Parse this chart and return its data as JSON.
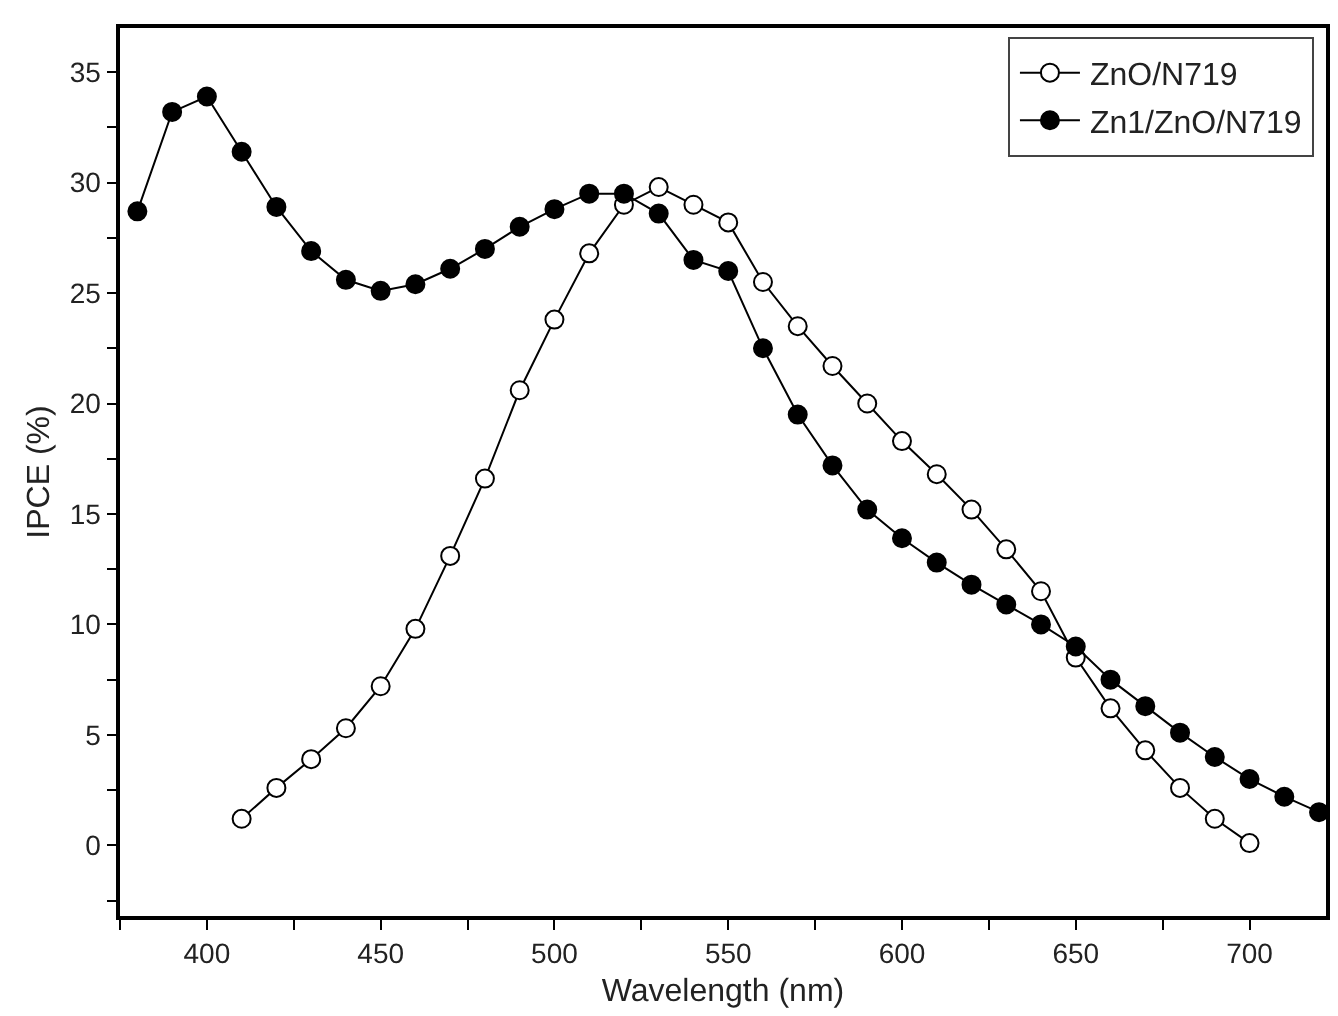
{
  "chart_data": {
    "type": "line",
    "xlabel": "Wavelength (nm)",
    "ylabel": "IPCE (%)",
    "xlim": [
      375,
      722
    ],
    "ylim": [
      -3.2,
      37
    ],
    "xticks": [
      {
        "value": 375,
        "label": null
      },
      400,
      {
        "value": 425,
        "label": null
      },
      450,
      {
        "value": 475,
        "label": null
      },
      500,
      {
        "value": 525,
        "label": null
      },
      550,
      {
        "value": 575,
        "label": null
      },
      600,
      {
        "value": 625,
        "label": null
      },
      650,
      {
        "value": 675,
        "label": null
      },
      700
    ],
    "yticks": [
      {
        "value": -2.5,
        "label": null
      },
      0,
      {
        "value": 2.5,
        "label": null
      },
      5,
      {
        "value": 7.5,
        "label": null
      },
      10,
      {
        "value": 12.5,
        "label": null
      },
      15,
      {
        "value": 17.5,
        "label": null
      },
      20,
      {
        "value": 22.5,
        "label": null
      },
      25,
      {
        "value": 27.5,
        "label": null
      },
      30,
      {
        "value": 32.5,
        "label": null
      },
      35
    ],
    "legend": "top right",
    "marker": "circle",
    "line_style": "solid",
    "series": [
      {
        "name": "ZnO/N719",
        "color": "#000000",
        "x": [
          410,
          420,
          430,
          440,
          450,
          460,
          470,
          480,
          490,
          500,
          510,
          520,
          530,
          540,
          550,
          560,
          570,
          580,
          590,
          600,
          610,
          620,
          630,
          640,
          650,
          660,
          670,
          680,
          690,
          700
        ],
        "values": [
          1.2,
          2.6,
          3.9,
          5.3,
          7.2,
          9.8,
          13.1,
          16.6,
          20.6,
          23.8,
          26.8,
          29.0,
          29.8,
          29.0,
          28.2,
          25.5,
          23.5,
          21.7,
          20.0,
          18.3,
          16.8,
          15.2,
          13.4,
          11.5,
          8.5,
          6.2,
          4.3,
          2.6,
          1.2,
          0.1
        ]
      },
      {
        "name": "Zn1/ZnO/N719",
        "color": "#000000",
        "x": [
          380,
          390,
          400,
          410,
          420,
          430,
          440,
          450,
          460,
          470,
          480,
          490,
          500,
          510,
          520,
          530,
          540,
          550,
          560,
          570,
          580,
          590,
          600,
          610,
          620,
          630,
          640,
          650,
          660,
          670,
          680,
          690,
          700,
          710,
          720
        ],
        "values": [
          28.7,
          33.2,
          33.9,
          31.4,
          28.9,
          26.9,
          25.6,
          25.1,
          25.4,
          26.1,
          27.0,
          28.0,
          28.8,
          29.5,
          29.5,
          28.6,
          26.5,
          26.0,
          22.5,
          19.5,
          17.2,
          15.2,
          13.9,
          12.8,
          11.8,
          10.9,
          10.0,
          9.0,
          7.5,
          6.3,
          5.1,
          4.0,
          3.0,
          2.2,
          1.5
        ]
      }
    ]
  }
}
